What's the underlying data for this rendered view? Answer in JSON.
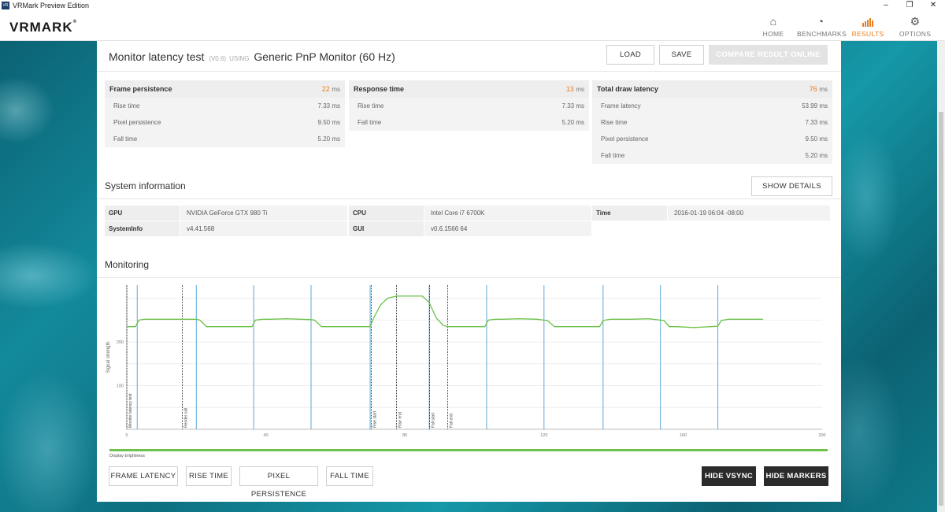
{
  "window": {
    "title": "VRMark Preview Edition",
    "controls": [
      "–",
      "❐",
      "✕"
    ]
  },
  "header": {
    "logo": "VRMARK",
    "nav": [
      {
        "label": "HOME",
        "icon": "home-icon",
        "glyph": "⌂",
        "active": false
      },
      {
        "label": "BENCHMARKS",
        "icon": "gauge-icon",
        "glyph": "◔",
        "active": false
      },
      {
        "label": "RESULTS",
        "icon": "bars-icon",
        "glyph": "▮",
        "active": true
      },
      {
        "label": "OPTIONS",
        "icon": "gear-icon",
        "glyph": "⚙",
        "active": false
      }
    ]
  },
  "result": {
    "title": "Monitor latency test",
    "version": "(V0.6)",
    "using": "USING",
    "monitor": "Generic PnP Monitor (60 Hz)",
    "load_label": "LOAD",
    "save_label": "SAVE",
    "compare_label": "COMPARE RESULT ONLINE"
  },
  "metrics": [
    {
      "title": "Frame persistence",
      "value": "22",
      "unit": "ms",
      "rows": [
        {
          "k": "Rise time",
          "v": "7.33 ms"
        },
        {
          "k": "Pixel persistence",
          "v": "9.50 ms"
        },
        {
          "k": "Fall time",
          "v": "5.20 ms"
        }
      ]
    },
    {
      "title": "Response time",
      "value": "13",
      "unit": "ms",
      "rows": [
        {
          "k": "Rise time",
          "v": "7.33 ms"
        },
        {
          "k": "Fall time",
          "v": "5.20 ms"
        }
      ]
    },
    {
      "title": "Total draw latency",
      "value": "76",
      "unit": "ms",
      "rows": [
        {
          "k": "Frame latency",
          "v": "53.99 ms"
        },
        {
          "k": "Rise time",
          "v": "7.33 ms"
        },
        {
          "k": "Pixel persistence",
          "v": "9.50 ms"
        },
        {
          "k": "Fall time",
          "v": "5.20 ms"
        }
      ]
    }
  ],
  "system": {
    "title": "System information",
    "show_details_label": "SHOW DETAILS",
    "gpu": {
      "k": "GPU",
      "v": "NVIDIA GeForce GTX 980 Ti"
    },
    "cpu": {
      "k": "CPU",
      "v": "Intel Core i7 6700K"
    },
    "time": {
      "k": "Time",
      "v": "2016-01-19 06:04 -08:00"
    },
    "sysinfo": {
      "k": "SystemInfo",
      "v": "v4.41.568"
    },
    "gui": {
      "k": "GUI",
      "v": "v0.6.1566 64"
    }
  },
  "monitoring": {
    "title": "Monitoring",
    "display_brightness_label": "Display brightness",
    "buttons": [
      "FRAME LATENCY",
      "RISE TIME",
      "PIXEL PERSISTENCE",
      "FALL TIME"
    ],
    "hide_vsync_label": "HIDE VSYNC",
    "hide_markers_label": "HIDE MARKERS"
  },
  "chart_data": {
    "type": "line",
    "ylabel": "Signal strength",
    "xlim": [
      0,
      200
    ],
    "ylim": [
      0,
      330
    ],
    "x_ticks": [
      0,
      40,
      80,
      120,
      160,
      200
    ],
    "y_ticks": [
      100,
      200
    ],
    "line_color": "#6cc24a",
    "vsync_color": "#5fa8d8",
    "vsync_x": [
      3,
      20,
      36.5,
      53,
      70,
      87,
      103.5,
      120,
      137,
      153.5,
      170
    ],
    "markers": [
      {
        "x": 0,
        "label": "Monitor latency test"
      },
      {
        "x": 16,
        "label": "Render call"
      },
      {
        "x": 70.3,
        "label": "Rise start"
      },
      {
        "x": 77.6,
        "label": "Rise end"
      },
      {
        "x": 87.1,
        "label": "Fall start"
      },
      {
        "x": 92.3,
        "label": "Fall end"
      }
    ],
    "series": [
      {
        "x": [
          0,
          2.5,
          3.5,
          5,
          10,
          15,
          20,
          21,
          23,
          25,
          36,
          37,
          39,
          41,
          46,
          50,
          53,
          54,
          56,
          58,
          70,
          71,
          73,
          75,
          77.6,
          80,
          85,
          87,
          89,
          91,
          92.3,
          103,
          104,
          106,
          108,
          113,
          118,
          120,
          121,
          123,
          125,
          136,
          137,
          139,
          141,
          145,
          150,
          153.5,
          154.5,
          156,
          158,
          163,
          168,
          170,
          171,
          173,
          175,
          183
        ],
        "y": [
          235,
          235,
          250,
          252,
          252,
          252,
          252,
          250,
          235,
          235,
          235,
          250,
          252,
          252,
          253,
          252,
          251,
          250,
          235,
          235,
          235,
          255,
          285,
          300,
          305,
          305,
          305,
          290,
          255,
          238,
          235,
          235,
          250,
          252,
          252,
          253,
          252,
          250,
          249,
          235,
          235,
          235,
          249,
          252,
          252,
          252,
          253,
          250,
          249,
          235,
          235,
          233,
          235,
          236,
          249,
          252,
          252,
          252
        ]
      }
    ]
  }
}
